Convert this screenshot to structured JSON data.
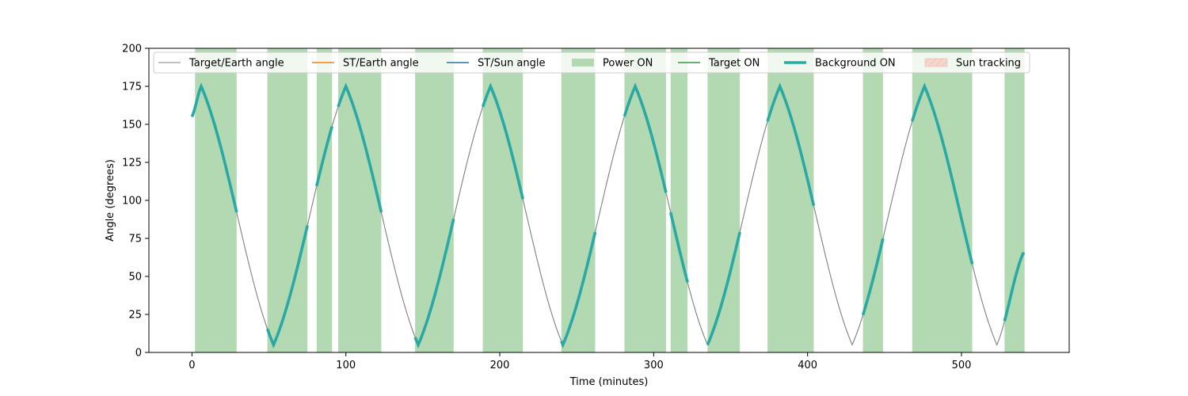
{
  "chart_data": {
    "type": "line",
    "xlabel": "Time (minutes)",
    "ylabel": "Angle (degrees)",
    "xlim": [
      -28,
      570
    ],
    "ylim": [
      0,
      200
    ],
    "xticks": [
      0,
      100,
      200,
      300,
      400,
      500
    ],
    "yticks": [
      0,
      25,
      50,
      75,
      100,
      125,
      150,
      175,
      200
    ],
    "grid": false,
    "legend_position": "top",
    "colors": {
      "target_earth": "#808080",
      "st_earth": "#ff7f0e",
      "st_sun": "#1f77b4",
      "power_on": "#b2d9b2",
      "target_on": "#2ca02c",
      "background_on": "#2aa8a4",
      "sun_tracking": "#f5d5cc"
    },
    "legend": [
      {
        "key": "target_earth",
        "label": "Target/Earth angle",
        "kind": "thin-line"
      },
      {
        "key": "st_earth",
        "label": "ST/Earth angle",
        "kind": "line"
      },
      {
        "key": "st_sun",
        "label": "ST/Sun angle",
        "kind": "line"
      },
      {
        "key": "power_on",
        "label": "Power ON",
        "kind": "patch"
      },
      {
        "key": "target_on",
        "label": "Target ON",
        "kind": "line"
      },
      {
        "key": "background_on",
        "label": "Background ON",
        "kind": "thick-line"
      },
      {
        "key": "sun_tracking",
        "label": "Sun tracking",
        "kind": "hatch"
      }
    ],
    "target_earth_angle": {
      "name": "Target/Earth angle",
      "x": [
        0,
        6,
        53,
        100,
        147,
        194,
        241,
        288,
        335,
        382,
        429,
        476,
        523,
        540
      ],
      "y": [
        155,
        175,
        5,
        175,
        5,
        175,
        5,
        175,
        5,
        175,
        5,
        175,
        5,
        65
      ]
    },
    "power_on_intervals": [
      [
        2,
        29
      ],
      [
        49,
        75
      ],
      [
        81,
        91
      ],
      [
        95,
        123
      ],
      [
        145,
        170
      ],
      [
        189,
        215
      ],
      [
        240,
        262
      ],
      [
        281,
        308
      ],
      [
        311,
        322
      ],
      [
        335,
        356
      ],
      [
        374,
        404
      ],
      [
        436,
        449
      ],
      [
        468,
        507
      ],
      [
        528,
        541
      ]
    ],
    "background_on_intervals": [
      [
        0,
        29
      ],
      [
        49,
        75
      ],
      [
        81,
        91
      ],
      [
        95,
        123
      ],
      [
        145,
        170
      ],
      [
        189,
        215
      ],
      [
        240,
        262
      ],
      [
        281,
        308
      ],
      [
        311,
        322
      ],
      [
        335,
        356
      ],
      [
        374,
        404
      ],
      [
        436,
        449
      ],
      [
        468,
        507
      ],
      [
        528,
        541
      ]
    ]
  }
}
